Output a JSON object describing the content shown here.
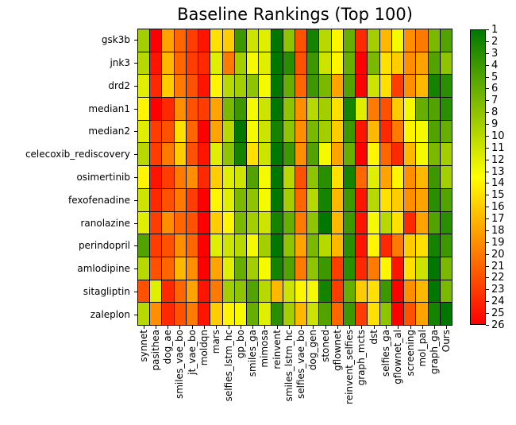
{
  "title": "Baseline Rankings (Top 100)",
  "chart_data": {
    "type": "heatmap",
    "title": "Baseline Rankings (Top 100)",
    "x_categories": [
      "synnet",
      "pasithea",
      "dog_ae",
      "smiles_vae_bo",
      "jt_vae_bo",
      "moldqn",
      "mars",
      "selfies_lstm_hc",
      "gp_bo",
      "smiles_ga",
      "mimosa",
      "reinvent",
      "smiles_lstm_hc",
      "selfies_vae_bo",
      "dog_gen",
      "stoned",
      "gflownet",
      "reinvent_selfies",
      "graph_mcts",
      "dst",
      "selfies_ga",
      "gflownet_al",
      "screening",
      "mol_pal",
      "graph_ga",
      "Ours"
    ],
    "y_categories": [
      "gsk3b",
      "jnk3",
      "drd2",
      "median1",
      "median2",
      "celecoxib_rediscovery",
      "osimertinib",
      "fexofenadine",
      "ranolazine",
      "perindopril",
      "amlodipine",
      "sitagliptin",
      "zaleplon"
    ],
    "values": [
      [
        9,
        26,
        18,
        21,
        23,
        25,
        15,
        16,
        4,
        11,
        12,
        1,
        8,
        22,
        2,
        10,
        14,
        6,
        24,
        9,
        17,
        13,
        19,
        20,
        7,
        5
      ],
      [
        10,
        25,
        17,
        21,
        23,
        24,
        12,
        20,
        9,
        13,
        12,
        1,
        3,
        22,
        4,
        11,
        14,
        6,
        26,
        7,
        15,
        16,
        19,
        18,
        5,
        8
      ],
      [
        12,
        24,
        16,
        20,
        22,
        25,
        14,
        10,
        9,
        8,
        13,
        1,
        6,
        21,
        4,
        7,
        18,
        5,
        26,
        11,
        15,
        23,
        19,
        17,
        2,
        3
      ],
      [
        14,
        26,
        24,
        19,
        22,
        23,
        18,
        7,
        4,
        13,
        11,
        1,
        8,
        19,
        10,
        9,
        15,
        2,
        12,
        20,
        22,
        16,
        13,
        6,
        5,
        3
      ],
      [
        12,
        23,
        22,
        15,
        21,
        26,
        18,
        10,
        1,
        13,
        11,
        2,
        8,
        19,
        7,
        9,
        16,
        4,
        25,
        17,
        24,
        20,
        14,
        13,
        5,
        6
      ],
      [
        10,
        23,
        20,
        16,
        22,
        25,
        12,
        8,
        2,
        15,
        11,
        1,
        4,
        19,
        5,
        13,
        18,
        6,
        26,
        14,
        21,
        24,
        17,
        13,
        7,
        9
      ],
      [
        14,
        25,
        23,
        20,
        19,
        24,
        16,
        12,
        11,
        5,
        13,
        1,
        10,
        22,
        8,
        3,
        15,
        2,
        21,
        12,
        18,
        14,
        19,
        17,
        4,
        9
      ],
      [
        11,
        24,
        22,
        20,
        23,
        26,
        14,
        12,
        7,
        8,
        13,
        1,
        9,
        21,
        10,
        2,
        17,
        4,
        25,
        10,
        15,
        16,
        19,
        18,
        3,
        5
      ],
      [
        12,
        23,
        19,
        21,
        22,
        26,
        16,
        14,
        7,
        9,
        11,
        2,
        6,
        20,
        8,
        1,
        17,
        4,
        25,
        13,
        10,
        15,
        24,
        18,
        5,
        3
      ],
      [
        5,
        23,
        22,
        19,
        21,
        26,
        12,
        11,
        10,
        13,
        9,
        1,
        8,
        18,
        7,
        10,
        17,
        3,
        25,
        14,
        24,
        20,
        16,
        15,
        2,
        4
      ],
      [
        10,
        22,
        21,
        17,
        19,
        26,
        18,
        12,
        6,
        9,
        13,
        2,
        5,
        20,
        8,
        4,
        23,
        3,
        24,
        20,
        14,
        25,
        15,
        11,
        1,
        7
      ],
      [
        22,
        12,
        24,
        21,
        18,
        25,
        20,
        9,
        8,
        5,
        10,
        17,
        11,
        14,
        13,
        2,
        23,
        6,
        16,
        15,
        4,
        26,
        19,
        17,
        1,
        7
      ],
      [
        10,
        19,
        24,
        22,
        20,
        25,
        16,
        14,
        13,
        6,
        12,
        3,
        9,
        17,
        11,
        5,
        21,
        4,
        23,
        15,
        8,
        26,
        22,
        18,
        2,
        1
      ]
    ],
    "colorbar": {
      "min": 1,
      "max": 26,
      "ticks": [
        1,
        2,
        3,
        4,
        5,
        6,
        7,
        8,
        9,
        10,
        11,
        12,
        13,
        14,
        15,
        16,
        17,
        18,
        19,
        20,
        21,
        22,
        23,
        24,
        25,
        26
      ],
      "orientation": "vertical",
      "position": "right"
    },
    "colormap": {
      "low_color": "#007800",
      "mid_color": "#ffff00",
      "high_color": "#ff0000"
    }
  }
}
